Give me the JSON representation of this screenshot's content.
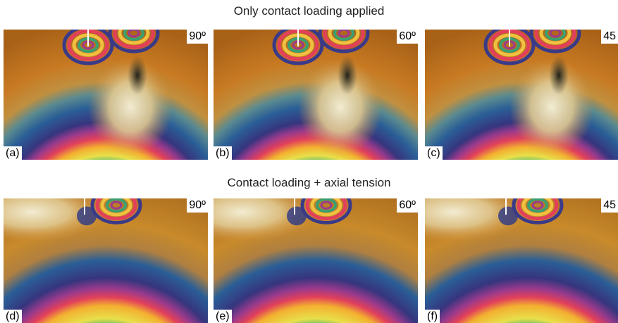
{
  "rows": [
    {
      "title": "Only contact loading applied",
      "panels": [
        {
          "label": "(a)",
          "angle": "90º"
        },
        {
          "label": "(b)",
          "angle": "60º"
        },
        {
          "label": "(c)",
          "angle": "45"
        }
      ]
    },
    {
      "title": "Contact loading + axial tension",
      "panels": [
        {
          "label": "(d)",
          "angle": "90º"
        },
        {
          "label": "(e)",
          "angle": "60º"
        },
        {
          "label": "(f)",
          "angle": "45"
        }
      ]
    }
  ]
}
